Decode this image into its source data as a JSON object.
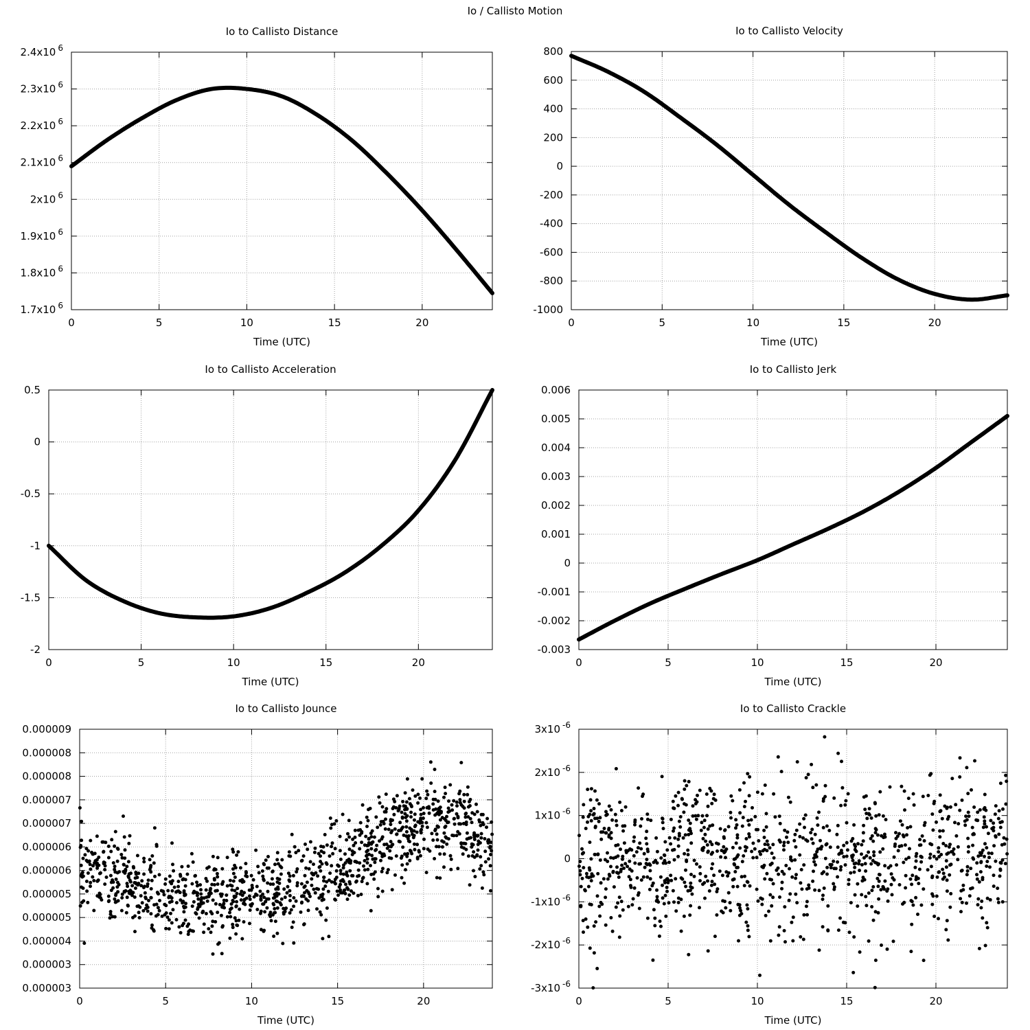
{
  "figure_title": "Io / Callisto Motion",
  "chart_data": [
    {
      "type": "line",
      "title": "Io to Callisto Distance",
      "xlabel": "Time (UTC)",
      "ylabel": "",
      "xlim": [
        0,
        24
      ],
      "ylim": [
        1700000,
        2400000
      ],
      "grid": true,
      "xticks": [
        "0",
        "5",
        "10",
        "15",
        "20"
      ],
      "yticks": [
        {
          "mant": "1.7x10",
          "exp": "6"
        },
        {
          "mant": "1.8x10",
          "exp": "6"
        },
        {
          "mant": "1.9x10",
          "exp": "6"
        },
        {
          "mant": "2x10",
          "exp": "6"
        },
        {
          "mant": "2.1x10",
          "exp": "6"
        },
        {
          "mant": "2.2x10",
          "exp": "6"
        },
        {
          "mant": "2.3x10",
          "exp": "6"
        },
        {
          "mant": "2.4x10",
          "exp": "6"
        }
      ],
      "x": [
        0,
        2,
        4,
        6,
        8,
        10,
        12,
        14,
        16,
        18,
        20,
        22,
        24
      ],
      "y": [
        2090000,
        2160000,
        2220000,
        2270000,
        2300000,
        2300000,
        2280000,
        2230000,
        2160000,
        2070000,
        1970000,
        1860000,
        1745000
      ]
    },
    {
      "type": "line",
      "title": "Io to Callisto Velocity",
      "xlabel": "Time (UTC)",
      "ylabel": "",
      "xlim": [
        0,
        24
      ],
      "ylim": [
        -1000,
        800
      ],
      "grid": true,
      "xticks": [
        "0",
        "5",
        "10",
        "15",
        "20"
      ],
      "yticks": [
        "-1000",
        "-800",
        "-600",
        "-400",
        "-200",
        "0",
        "200",
        "400",
        "600",
        "800"
      ],
      "x": [
        0,
        2,
        4,
        6,
        8,
        10,
        12,
        14,
        16,
        18,
        20,
        22,
        24
      ],
      "y": [
        770,
        660,
        520,
        340,
        150,
        -60,
        -270,
        -460,
        -640,
        -790,
        -890,
        -930,
        -900
      ]
    },
    {
      "type": "line",
      "title": "Io to Callisto Acceleration",
      "xlabel": "Time (UTC)",
      "ylabel": "",
      "xlim": [
        0,
        24
      ],
      "ylim": [
        -2,
        0.5
      ],
      "grid": true,
      "xticks": [
        "0",
        "5",
        "10",
        "15",
        "20"
      ],
      "yticks": [
        "-2",
        "-1.5",
        "-1",
        "-0.5",
        "0",
        "0.5"
      ],
      "x": [
        0,
        2,
        4,
        6,
        8,
        10,
        12,
        14,
        16,
        18,
        20,
        22,
        24
      ],
      "y": [
        -1.0,
        -1.33,
        -1.53,
        -1.65,
        -1.69,
        -1.68,
        -1.6,
        -1.45,
        -1.26,
        -1.0,
        -0.66,
        -0.17,
        0.5
      ]
    },
    {
      "type": "line",
      "title": "Io to Callisto Jerk",
      "xlabel": "Time (UTC)",
      "ylabel": "",
      "xlim": [
        0,
        24
      ],
      "ylim": [
        -0.003,
        0.006
      ],
      "grid": true,
      "xticks": [
        "0",
        "5",
        "10",
        "15",
        "20"
      ],
      "yticks": [
        "-0.003",
        "-0.002",
        "-0.001",
        "0",
        "0.001",
        "0.002",
        "0.003",
        "0.004",
        "0.005",
        "0.006"
      ],
      "x": [
        0,
        2,
        4,
        6,
        8,
        10,
        12,
        14,
        16,
        18,
        20,
        22,
        24
      ],
      "y": [
        -0.00265,
        -0.002,
        -0.0014,
        -0.00088,
        -0.00038,
        0.0001,
        0.00065,
        0.0012,
        0.0018,
        0.0025,
        0.0033,
        0.0042,
        0.0051
      ]
    },
    {
      "type": "scatter",
      "title": "Io to Callisto Jounce",
      "xlabel": "Time (UTC)",
      "ylabel": "",
      "xlim": [
        0,
        24
      ],
      "ylim": [
        2.5e-06,
        9.1e-06
      ],
      "grid": true,
      "xticks": [
        "0",
        "5",
        "10",
        "15",
        "20"
      ],
      "yticks": [
        "0.000003",
        "0.000003",
        "0.000004",
        "0.000005",
        "0.000005",
        "0.000006",
        "0.000006",
        "0.000007",
        "0.000007",
        "0.000008",
        "0.000008",
        "0.000009"
      ],
      "trend_x": [
        0,
        2,
        4,
        6,
        8,
        10,
        12,
        14,
        16,
        18,
        20,
        22,
        24
      ],
      "trend_y": [
        5.6e-06,
        5.3e-06,
        4.9e-06,
        4.7e-06,
        4.7e-06,
        4.8e-06,
        5e-06,
        5.3e-06,
        5.8e-06,
        6.3e-06,
        6.7e-06,
        6.7e-06,
        6.1e-06
      ],
      "spread": 5.5e-07,
      "point_count": 1200
    },
    {
      "type": "scatter",
      "title": "Io to Callisto Crackle",
      "xlabel": "Time (UTC)",
      "ylabel": "",
      "xlim": [
        0,
        24
      ],
      "ylim": [
        -3e-06,
        3e-06
      ],
      "grid": true,
      "xticks": [
        "0",
        "5",
        "10",
        "15",
        "20"
      ],
      "yticks": [
        {
          "mant": "-3x10",
          "exp": "-6"
        },
        {
          "mant": "-2x10",
          "exp": "-6"
        },
        {
          "mant": "-1x10",
          "exp": "-6"
        },
        {
          "mant": "0",
          "exp": ""
        },
        {
          "mant": "1x10",
          "exp": "-6"
        },
        {
          "mant": "2x10",
          "exp": "-6"
        },
        {
          "mant": "3x10",
          "exp": "-6"
        }
      ],
      "trend_x": [
        0,
        24
      ],
      "trend_y": [
        0,
        0
      ],
      "spread": 9e-07,
      "point_count": 1100
    }
  ]
}
